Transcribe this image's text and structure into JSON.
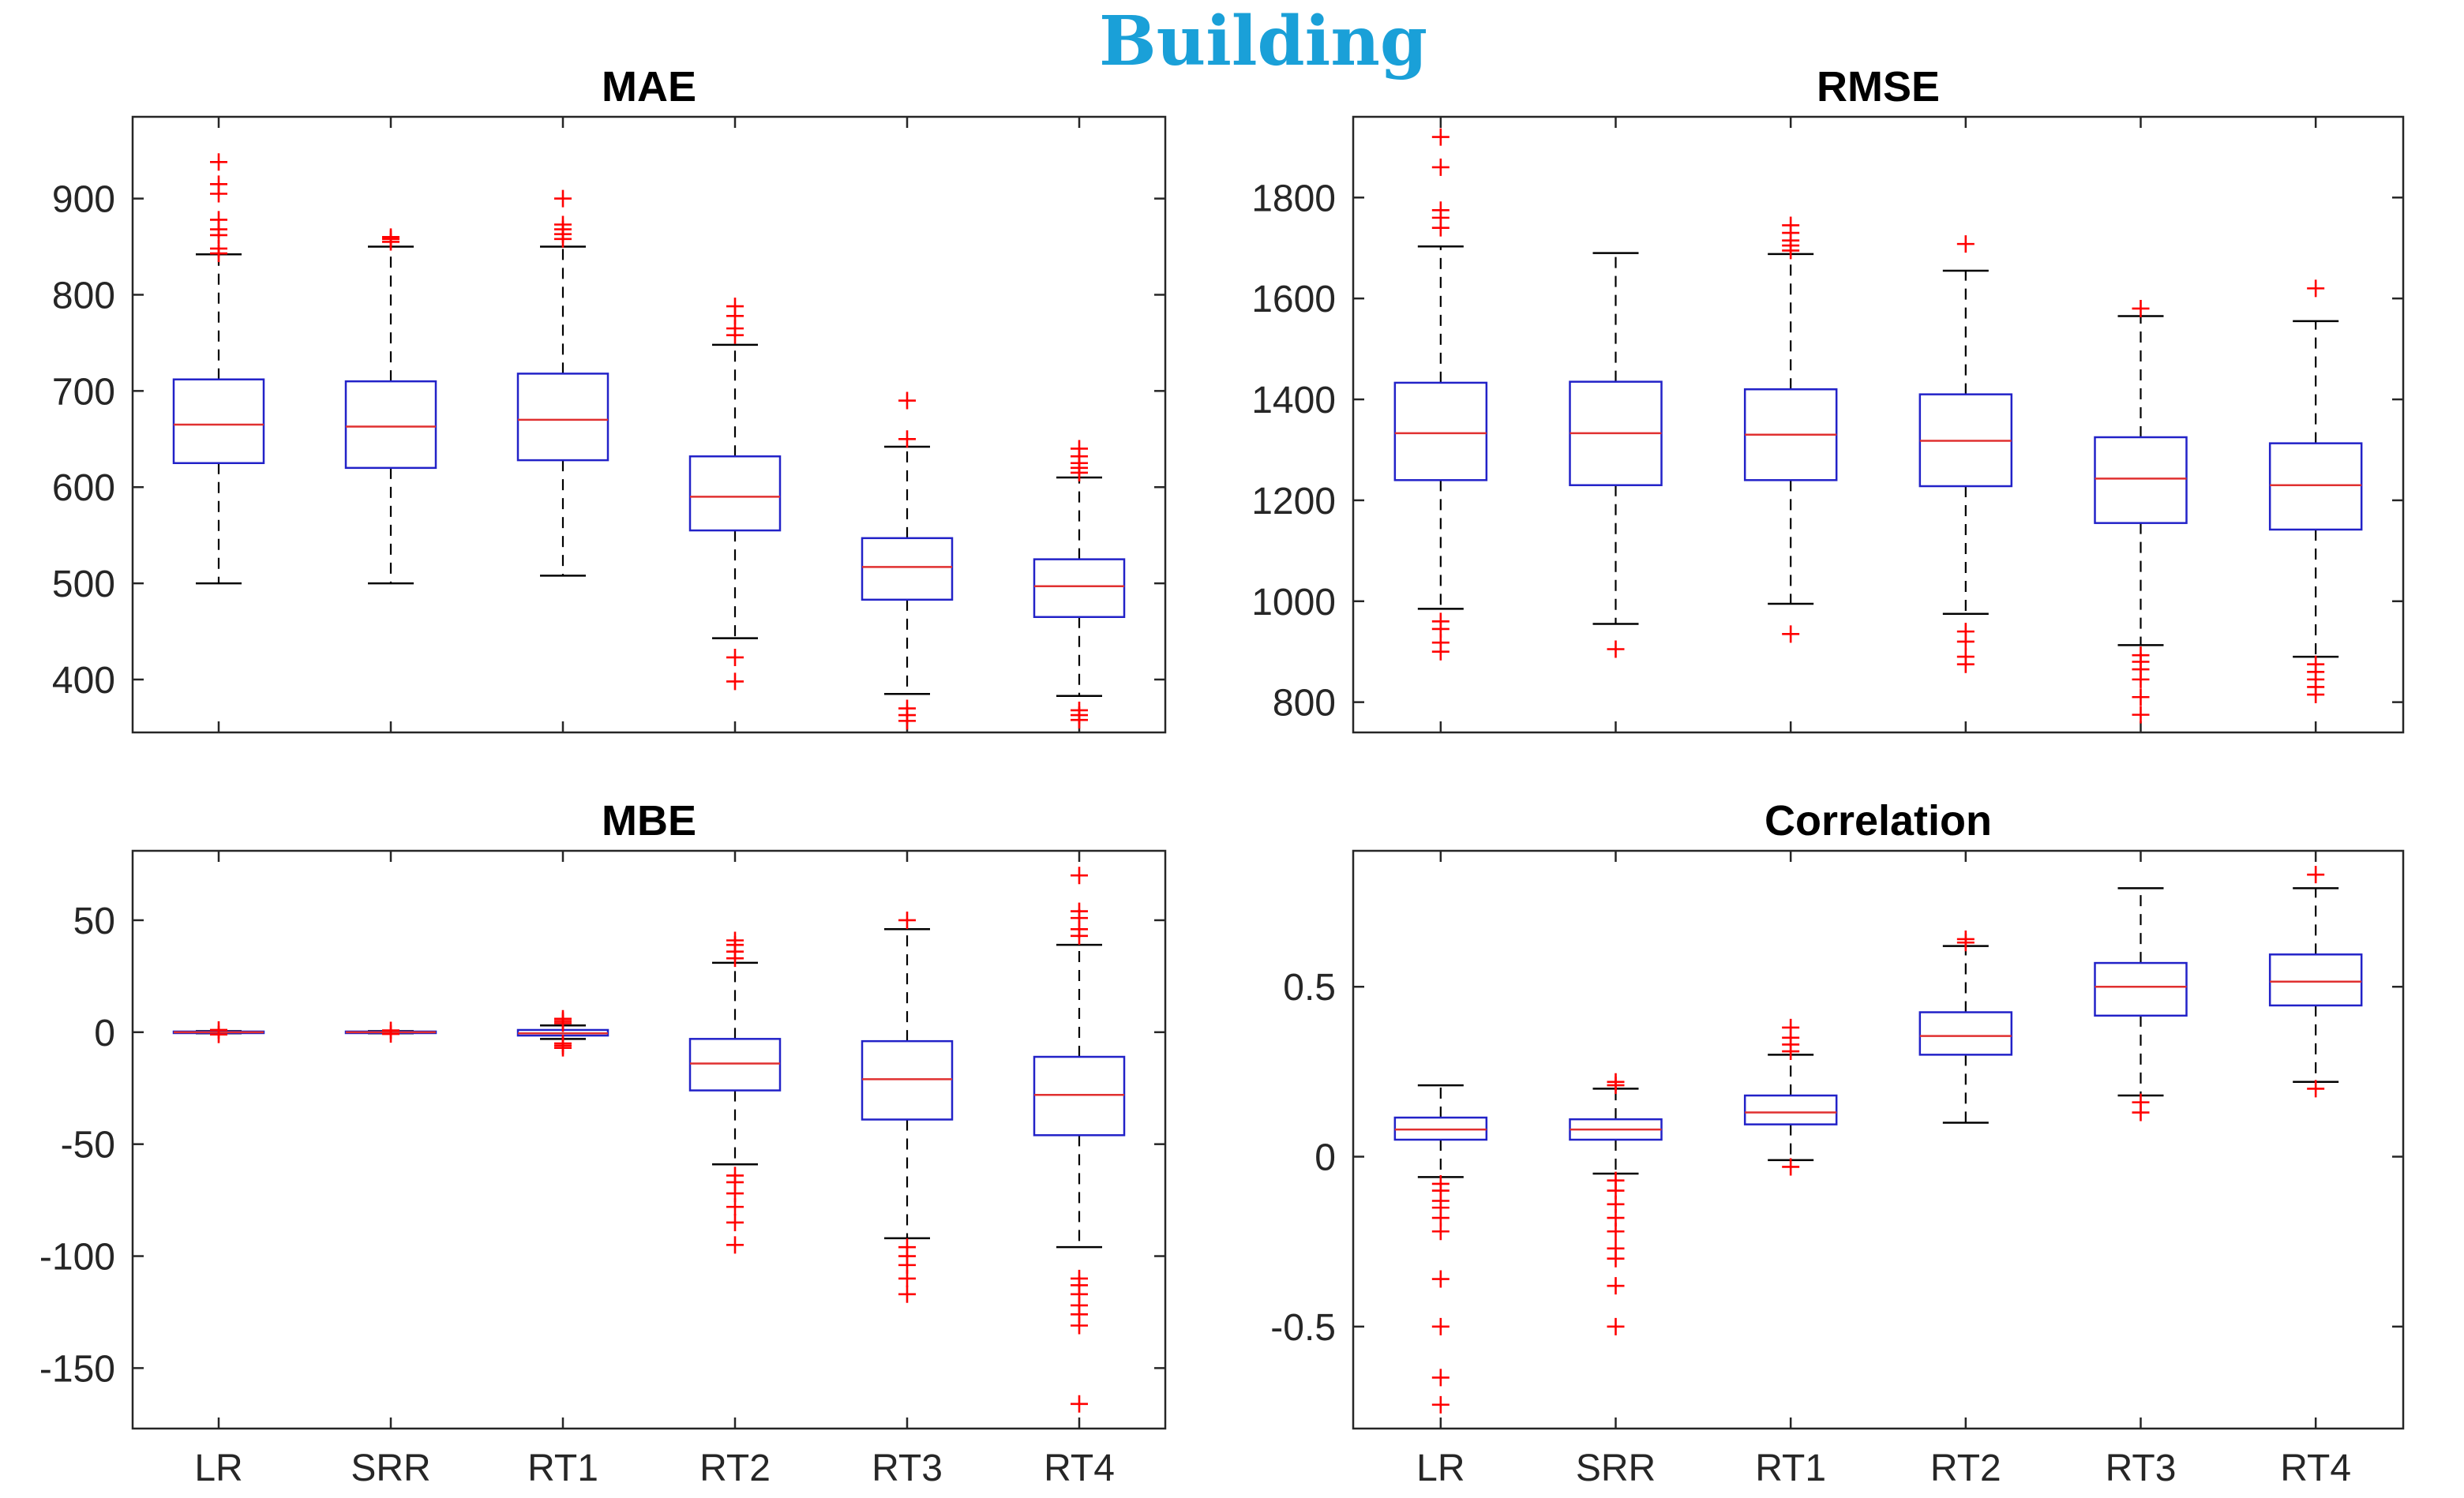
{
  "figure": {
    "title": "Building",
    "title_color": "#1aa0d8",
    "box_color": "#2222c8",
    "median_color": "#e03030",
    "outlier_color": "#ff0000",
    "whisker_color": "#000000"
  },
  "chart_data": [
    {
      "type": "box",
      "title": "MAE",
      "categories": [
        "LR",
        "SRR",
        "RT1",
        "RT2",
        "RT3",
        "RT4"
      ],
      "ylim": [
        345,
        985
      ],
      "yticks": [
        400,
        500,
        600,
        700,
        800,
        900
      ],
      "yticklabels": [
        "400",
        "500",
        "600",
        "700",
        "800",
        "900"
      ],
      "show_xticklabels": false,
      "boxes": [
        {
          "whisker_low": 500,
          "q1": 625,
          "median": 665,
          "q3": 712,
          "whisker_high": 842,
          "outliers": [
            843,
            848,
            862,
            868,
            878,
            905,
            915,
            938
          ]
        },
        {
          "whisker_low": 500,
          "q1": 620,
          "median": 663,
          "q3": 710,
          "whisker_high": 850,
          "outliers": [
            855,
            858,
            860
          ]
        },
        {
          "whisker_low": 508,
          "q1": 628,
          "median": 670,
          "q3": 718,
          "whisker_high": 850,
          "outliers": [
            858,
            863,
            868,
            873,
            900
          ]
        },
        {
          "whisker_low": 443,
          "q1": 555,
          "median": 590,
          "q3": 632,
          "whisker_high": 748,
          "outliers": [
            398,
            423,
            758,
            765,
            778,
            788
          ]
        },
        {
          "whisker_low": 385,
          "q1": 483,
          "median": 517,
          "q3": 547,
          "whisker_high": 642,
          "outliers": [
            357,
            363,
            370,
            650,
            690
          ]
        },
        {
          "whisker_low": 383,
          "q1": 465,
          "median": 497,
          "q3": 525,
          "whisker_high": 610,
          "outliers": [
            358,
            363,
            368,
            615,
            620,
            625,
            632,
            640
          ]
        }
      ]
    },
    {
      "type": "box",
      "title": "RMSE",
      "categories": [
        "LR",
        "SRR",
        "RT1",
        "RT2",
        "RT3",
        "RT4"
      ],
      "ylim": [
        740,
        1960
      ],
      "yticks": [
        800,
        1000,
        1200,
        1400,
        1600,
        1800
      ],
      "yticklabels": [
        "800",
        "1000",
        "1200",
        "1400",
        "1600",
        "1800"
      ],
      "show_xticklabels": false,
      "boxes": [
        {
          "whisker_low": 985,
          "q1": 1240,
          "median": 1333,
          "q3": 1433,
          "whisker_high": 1703,
          "outliers": [
            900,
            918,
            945,
            960,
            1740,
            1760,
            1775,
            1860,
            1920
          ]
        },
        {
          "whisker_low": 955,
          "q1": 1230,
          "median": 1333,
          "q3": 1435,
          "whisker_high": 1690,
          "outliers": [
            905
          ]
        },
        {
          "whisker_low": 995,
          "q1": 1240,
          "median": 1330,
          "q3": 1420,
          "whisker_high": 1688,
          "outliers": [
            935,
            1695,
            1705,
            1715,
            1730,
            1745
          ]
        },
        {
          "whisker_low": 975,
          "q1": 1228,
          "median": 1318,
          "q3": 1410,
          "whisker_high": 1655,
          "outliers": [
            875,
            890,
            920,
            940,
            1708
          ]
        },
        {
          "whisker_low": 913,
          "q1": 1155,
          "median": 1243,
          "q3": 1325,
          "whisker_high": 1565,
          "outliers": [
            775,
            810,
            845,
            865,
            880,
            893,
            1580
          ]
        },
        {
          "whisker_low": 890,
          "q1": 1142,
          "median": 1230,
          "q3": 1313,
          "whisker_high": 1555,
          "outliers": [
            815,
            830,
            845,
            860,
            875,
            1620
          ]
        }
      ]
    },
    {
      "type": "box",
      "title": "MBE",
      "categories": [
        "LR",
        "SRR",
        "RT1",
        "RT2",
        "RT3",
        "RT4"
      ],
      "ylim": [
        -177,
        81
      ],
      "yticks": [
        -150,
        -100,
        -50,
        0,
        50
      ],
      "yticklabels": [
        "-150",
        "-100",
        "-50",
        "0",
        "50"
      ],
      "show_xticklabels": true,
      "boxes": [
        {
          "whisker_low": -0.5,
          "q1": -0.3,
          "median": 0,
          "q3": 0.3,
          "whisker_high": 0.5,
          "outliers": [
            -1,
            1
          ]
        },
        {
          "whisker_low": -0.5,
          "q1": -0.3,
          "median": 0,
          "q3": 0.3,
          "whisker_high": 0.5,
          "outliers": [
            -0.8,
            0.8
          ]
        },
        {
          "whisker_low": -3,
          "q1": -1.5,
          "median": -0.5,
          "q3": 1,
          "whisker_high": 3,
          "outliers": [
            -7,
            -6,
            -5,
            4,
            5,
            6
          ]
        },
        {
          "whisker_low": -59,
          "q1": -26,
          "median": -14,
          "q3": -3,
          "whisker_high": 31,
          "outliers": [
            -95,
            -85,
            -78,
            -72,
            -67,
            -64,
            33,
            36,
            39,
            41
          ]
        },
        {
          "whisker_low": -92,
          "q1": -39,
          "median": -21,
          "q3": -4,
          "whisker_high": 46,
          "outliers": [
            -117,
            -110,
            -104,
            -100,
            -96,
            50
          ]
        },
        {
          "whisker_low": -96,
          "q1": -46,
          "median": -28,
          "q3": -11,
          "whisker_high": 39,
          "outliers": [
            -166,
            -131,
            -126,
            -122,
            -117,
            -113,
            -110,
            43,
            46,
            51,
            54,
            70
          ]
        }
      ]
    },
    {
      "type": "box",
      "title": "Correlation",
      "categories": [
        "LR",
        "SRR",
        "RT1",
        "RT2",
        "RT3",
        "RT4"
      ],
      "ylim": [
        -0.8,
        0.9
      ],
      "yticks": [
        -0.5,
        0,
        0.5
      ],
      "yticklabels": [
        "-0.5",
        "0",
        "0.5"
      ],
      "show_xticklabels": true,
      "boxes": [
        {
          "whisker_low": -0.06,
          "q1": 0.05,
          "median": 0.08,
          "q3": 0.115,
          "whisker_high": 0.21,
          "outliers": [
            -0.08,
            -0.1,
            -0.13,
            -0.15,
            -0.18,
            -0.22,
            -0.36,
            -0.5,
            -0.65,
            -0.73
          ]
        },
        {
          "whisker_low": -0.05,
          "q1": 0.05,
          "median": 0.08,
          "q3": 0.11,
          "whisker_high": 0.2,
          "outliers": [
            -0.07,
            -0.1,
            -0.14,
            -0.18,
            -0.22,
            -0.27,
            -0.3,
            -0.38,
            -0.5,
            0.21,
            0.22
          ]
        },
        {
          "whisker_low": -0.01,
          "q1": 0.095,
          "median": 0.13,
          "q3": 0.18,
          "whisker_high": 0.3,
          "outliers": [
            -0.03,
            0.31,
            0.33,
            0.35,
            0.38
          ]
        },
        {
          "whisker_low": 0.1,
          "q1": 0.3,
          "median": 0.355,
          "q3": 0.425,
          "whisker_high": 0.62,
          "outliers": [
            0.63,
            0.64
          ]
        },
        {
          "whisker_low": 0.18,
          "q1": 0.415,
          "median": 0.5,
          "q3": 0.57,
          "whisker_high": 0.79,
          "outliers": [
            0.13,
            0.16
          ]
        },
        {
          "whisker_low": 0.22,
          "q1": 0.445,
          "median": 0.515,
          "q3": 0.595,
          "whisker_high": 0.79,
          "outliers": [
            0.2,
            0.83
          ]
        }
      ]
    }
  ]
}
